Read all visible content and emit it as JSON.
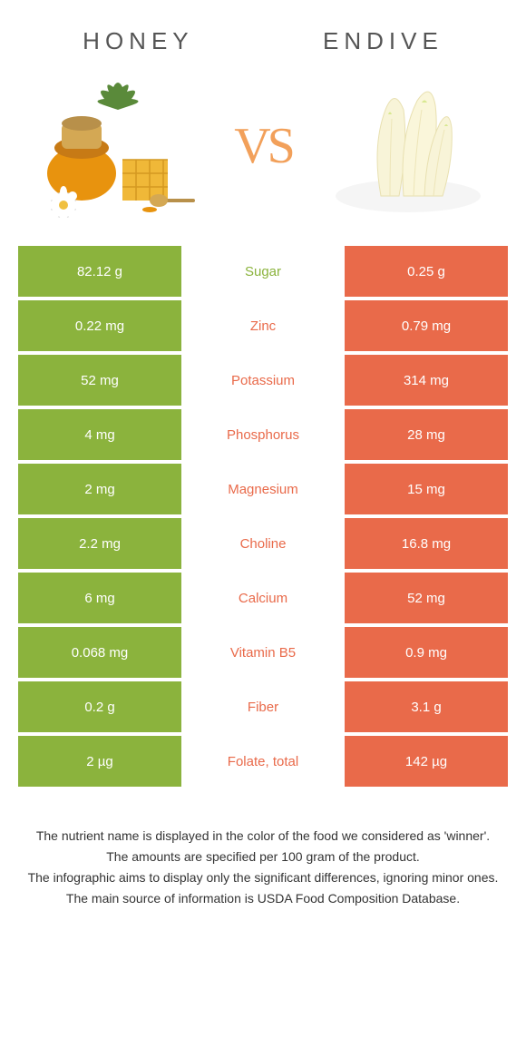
{
  "colors": {
    "left": "#8bb33d",
    "right": "#e96a4a",
    "mid_left_text": "#8bb33d",
    "mid_right_text": "#e96a4a",
    "vs": "#f2a05a"
  },
  "titles": {
    "left": "HONEY",
    "right": "ENDIVE",
    "vs": "VS"
  },
  "rows": [
    {
      "left": "82.12 g",
      "label": "Sugar",
      "right": "0.25 g",
      "winner": "left"
    },
    {
      "left": "0.22 mg",
      "label": "Zinc",
      "right": "0.79 mg",
      "winner": "right"
    },
    {
      "left": "52 mg",
      "label": "Potassium",
      "right": "314 mg",
      "winner": "right"
    },
    {
      "left": "4 mg",
      "label": "Phosphorus",
      "right": "28 mg",
      "winner": "right"
    },
    {
      "left": "2 mg",
      "label": "Magnesium",
      "right": "15 mg",
      "winner": "right"
    },
    {
      "left": "2.2 mg",
      "label": "Choline",
      "right": "16.8 mg",
      "winner": "right"
    },
    {
      "left": "6 mg",
      "label": "Calcium",
      "right": "52 mg",
      "winner": "right"
    },
    {
      "left": "0.068 mg",
      "label": "Vitamin B5",
      "right": "0.9 mg",
      "winner": "right"
    },
    {
      "left": "0.2 g",
      "label": "Fiber",
      "right": "3.1 g",
      "winner": "right"
    },
    {
      "left": "2 µg",
      "label": "Folate, total",
      "right": "142 µg",
      "winner": "right"
    }
  ],
  "footer": [
    "The nutrient name is displayed in the color of the food we considered as 'winner'.",
    "The amounts are specified per 100 gram of the product.",
    "The infographic aims to display only the significant differences, ignoring minor ones.",
    "The main source of information is USDA Food Composition Database."
  ]
}
